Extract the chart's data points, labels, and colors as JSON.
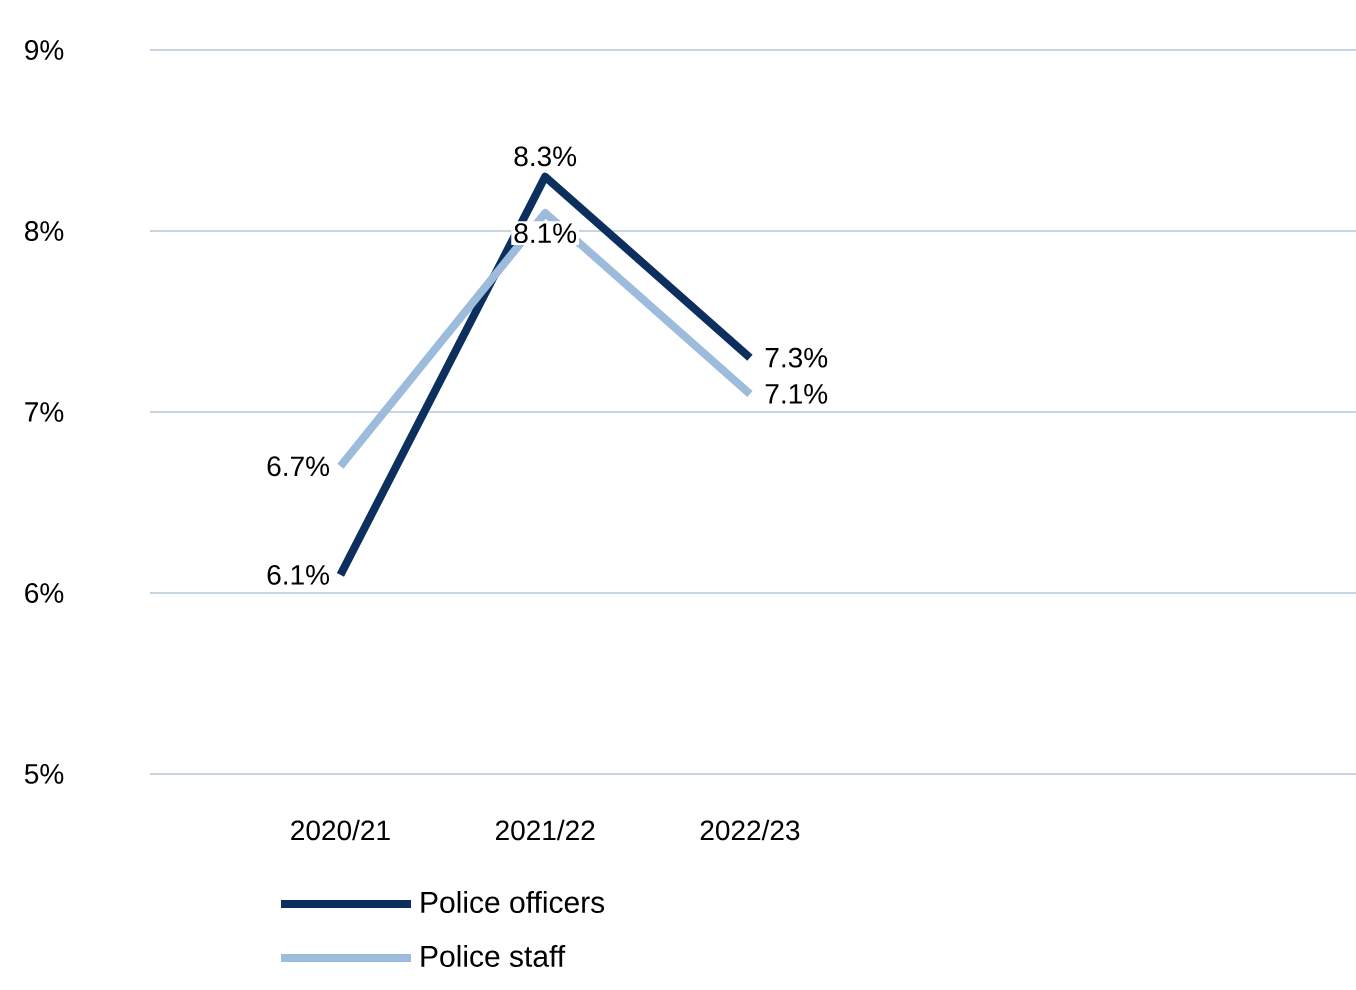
{
  "chart_data": {
    "type": "line",
    "categories": [
      "2020/21",
      "2021/22",
      "2022/23"
    ],
    "series": [
      {
        "name": "Police officers",
        "color": "#0d2f5e",
        "values": [
          6.1,
          8.3,
          7.3
        ],
        "value_labels": [
          "6.1%",
          "8.3%",
          "7.3%"
        ]
      },
      {
        "name": "Police staff",
        "color": "#9dbbdb",
        "values": [
          6.7,
          8.1,
          7.1
        ],
        "value_labels": [
          "6.7%",
          "8.1%",
          "7.1%"
        ]
      }
    ],
    "ylim": [
      5,
      9
    ],
    "yticks": [
      {
        "value": 5,
        "label": "5%"
      },
      {
        "value": 6,
        "label": "6%"
      },
      {
        "value": 7,
        "label": "7%"
      },
      {
        "value": 8,
        "label": "8%"
      },
      {
        "value": 9,
        "label": "9%"
      }
    ],
    "grid": "y",
    "legend": "bottom",
    "marker": "none",
    "line_style": "solid"
  }
}
